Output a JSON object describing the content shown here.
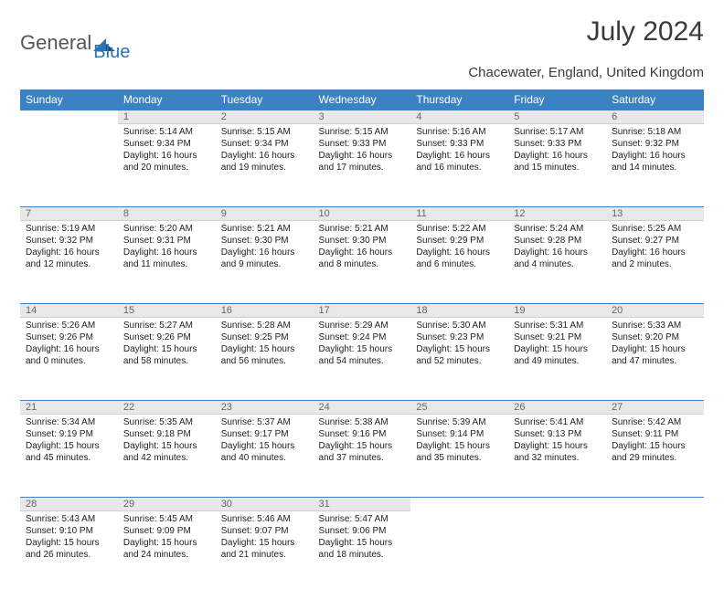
{
  "logo": {
    "part1": "General",
    "part2": "Blue"
  },
  "title": "July 2024",
  "location": "Chacewater, England, United Kingdom",
  "day_headers": [
    "Sunday",
    "Monday",
    "Tuesday",
    "Wednesday",
    "Thursday",
    "Friday",
    "Saturday"
  ],
  "colors": {
    "header_bg": "#3b82c4",
    "header_text": "#ffffff",
    "daynum_bg": "#e8e8e8",
    "daynum_border_top": "#3b82c4",
    "logo_gray": "#555555",
    "logo_blue": "#2e74b5"
  },
  "weeks": [
    {
      "nums": [
        "",
        "1",
        "2",
        "3",
        "4",
        "5",
        "6"
      ],
      "cells": [
        null,
        {
          "sunrise": "Sunrise: 5:14 AM",
          "sunset": "Sunset: 9:34 PM",
          "day1": "Daylight: 16 hours",
          "day2": "and 20 minutes."
        },
        {
          "sunrise": "Sunrise: 5:15 AM",
          "sunset": "Sunset: 9:34 PM",
          "day1": "Daylight: 16 hours",
          "day2": "and 19 minutes."
        },
        {
          "sunrise": "Sunrise: 5:15 AM",
          "sunset": "Sunset: 9:33 PM",
          "day1": "Daylight: 16 hours",
          "day2": "and 17 minutes."
        },
        {
          "sunrise": "Sunrise: 5:16 AM",
          "sunset": "Sunset: 9:33 PM",
          "day1": "Daylight: 16 hours",
          "day2": "and 16 minutes."
        },
        {
          "sunrise": "Sunrise: 5:17 AM",
          "sunset": "Sunset: 9:33 PM",
          "day1": "Daylight: 16 hours",
          "day2": "and 15 minutes."
        },
        {
          "sunrise": "Sunrise: 5:18 AM",
          "sunset": "Sunset: 9:32 PM",
          "day1": "Daylight: 16 hours",
          "day2": "and 14 minutes."
        }
      ]
    },
    {
      "nums": [
        "7",
        "8",
        "9",
        "10",
        "11",
        "12",
        "13"
      ],
      "cells": [
        {
          "sunrise": "Sunrise: 5:19 AM",
          "sunset": "Sunset: 9:32 PM",
          "day1": "Daylight: 16 hours",
          "day2": "and 12 minutes."
        },
        {
          "sunrise": "Sunrise: 5:20 AM",
          "sunset": "Sunset: 9:31 PM",
          "day1": "Daylight: 16 hours",
          "day2": "and 11 minutes."
        },
        {
          "sunrise": "Sunrise: 5:21 AM",
          "sunset": "Sunset: 9:30 PM",
          "day1": "Daylight: 16 hours",
          "day2": "and 9 minutes."
        },
        {
          "sunrise": "Sunrise: 5:21 AM",
          "sunset": "Sunset: 9:30 PM",
          "day1": "Daylight: 16 hours",
          "day2": "and 8 minutes."
        },
        {
          "sunrise": "Sunrise: 5:22 AM",
          "sunset": "Sunset: 9:29 PM",
          "day1": "Daylight: 16 hours",
          "day2": "and 6 minutes."
        },
        {
          "sunrise": "Sunrise: 5:24 AM",
          "sunset": "Sunset: 9:28 PM",
          "day1": "Daylight: 16 hours",
          "day2": "and 4 minutes."
        },
        {
          "sunrise": "Sunrise: 5:25 AM",
          "sunset": "Sunset: 9:27 PM",
          "day1": "Daylight: 16 hours",
          "day2": "and 2 minutes."
        }
      ]
    },
    {
      "nums": [
        "14",
        "15",
        "16",
        "17",
        "18",
        "19",
        "20"
      ],
      "cells": [
        {
          "sunrise": "Sunrise: 5:26 AM",
          "sunset": "Sunset: 9:26 PM",
          "day1": "Daylight: 16 hours",
          "day2": "and 0 minutes."
        },
        {
          "sunrise": "Sunrise: 5:27 AM",
          "sunset": "Sunset: 9:26 PM",
          "day1": "Daylight: 15 hours",
          "day2": "and 58 minutes."
        },
        {
          "sunrise": "Sunrise: 5:28 AM",
          "sunset": "Sunset: 9:25 PM",
          "day1": "Daylight: 15 hours",
          "day2": "and 56 minutes."
        },
        {
          "sunrise": "Sunrise: 5:29 AM",
          "sunset": "Sunset: 9:24 PM",
          "day1": "Daylight: 15 hours",
          "day2": "and 54 minutes."
        },
        {
          "sunrise": "Sunrise: 5:30 AM",
          "sunset": "Sunset: 9:23 PM",
          "day1": "Daylight: 15 hours",
          "day2": "and 52 minutes."
        },
        {
          "sunrise": "Sunrise: 5:31 AM",
          "sunset": "Sunset: 9:21 PM",
          "day1": "Daylight: 15 hours",
          "day2": "and 49 minutes."
        },
        {
          "sunrise": "Sunrise: 5:33 AM",
          "sunset": "Sunset: 9:20 PM",
          "day1": "Daylight: 15 hours",
          "day2": "and 47 minutes."
        }
      ]
    },
    {
      "nums": [
        "21",
        "22",
        "23",
        "24",
        "25",
        "26",
        "27"
      ],
      "cells": [
        {
          "sunrise": "Sunrise: 5:34 AM",
          "sunset": "Sunset: 9:19 PM",
          "day1": "Daylight: 15 hours",
          "day2": "and 45 minutes."
        },
        {
          "sunrise": "Sunrise: 5:35 AM",
          "sunset": "Sunset: 9:18 PM",
          "day1": "Daylight: 15 hours",
          "day2": "and 42 minutes."
        },
        {
          "sunrise": "Sunrise: 5:37 AM",
          "sunset": "Sunset: 9:17 PM",
          "day1": "Daylight: 15 hours",
          "day2": "and 40 minutes."
        },
        {
          "sunrise": "Sunrise: 5:38 AM",
          "sunset": "Sunset: 9:16 PM",
          "day1": "Daylight: 15 hours",
          "day2": "and 37 minutes."
        },
        {
          "sunrise": "Sunrise: 5:39 AM",
          "sunset": "Sunset: 9:14 PM",
          "day1": "Daylight: 15 hours",
          "day2": "and 35 minutes."
        },
        {
          "sunrise": "Sunrise: 5:41 AM",
          "sunset": "Sunset: 9:13 PM",
          "day1": "Daylight: 15 hours",
          "day2": "and 32 minutes."
        },
        {
          "sunrise": "Sunrise: 5:42 AM",
          "sunset": "Sunset: 9:11 PM",
          "day1": "Daylight: 15 hours",
          "day2": "and 29 minutes."
        }
      ]
    },
    {
      "nums": [
        "28",
        "29",
        "30",
        "31",
        "",
        "",
        ""
      ],
      "cells": [
        {
          "sunrise": "Sunrise: 5:43 AM",
          "sunset": "Sunset: 9:10 PM",
          "day1": "Daylight: 15 hours",
          "day2": "and 26 minutes."
        },
        {
          "sunrise": "Sunrise: 5:45 AM",
          "sunset": "Sunset: 9:09 PM",
          "day1": "Daylight: 15 hours",
          "day2": "and 24 minutes."
        },
        {
          "sunrise": "Sunrise: 5:46 AM",
          "sunset": "Sunset: 9:07 PM",
          "day1": "Daylight: 15 hours",
          "day2": "and 21 minutes."
        },
        {
          "sunrise": "Sunrise: 5:47 AM",
          "sunset": "Sunset: 9:06 PM",
          "day1": "Daylight: 15 hours",
          "day2": "and 18 minutes."
        },
        null,
        null,
        null
      ]
    }
  ]
}
